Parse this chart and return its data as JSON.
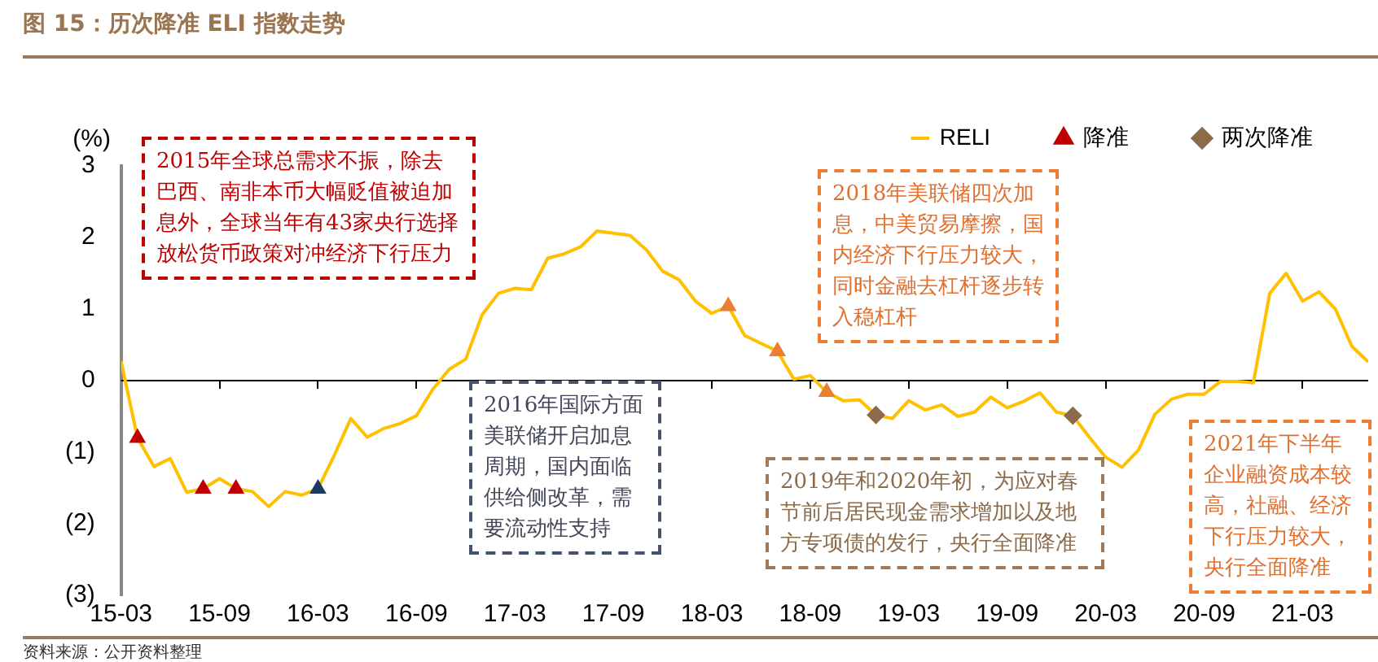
{
  "chart_data": {
    "type": "line",
    "title": "图 15：历次降准 ELI 指数走势",
    "ylabel": "(%)",
    "annotations": [
      "2015年全球总需求不振，除去巴西、南非本币大幅贬值被迫加息外，全球当年有43家央行选择放松货币政策对冲经济下行压力",
      "2016年国际方面美联储开启加息周期，国内面临供给侧改革，需要流动性支持",
      "2018年美联储四次加息，中美贸易摩擦，国内经济下行压力较大，同时金融去杠杆逐步转入稳杠杆",
      "2019年和2020年初，为应对春节前后居民现金需求增加以及地方专项债的发行，央行全面降准",
      "2021年下半年企业融资成本较高，社融、经济下行压力较大，央行全面降准",
      "资料来源：公开资料整理"
    ],
    "x": [
      "2015-03",
      "2015-04",
      "2015-05",
      "2015-06",
      "2015-07",
      "2015-08",
      "2015-09",
      "2015-10",
      "2015-11",
      "2015-12",
      "2016-01",
      "2016-02",
      "2016-03",
      "2016-04",
      "2016-05",
      "2016-06",
      "2016-07",
      "2016-08",
      "2016-09",
      "2016-10",
      "2016-11",
      "2016-12",
      "2017-01",
      "2017-02",
      "2017-03",
      "2017-04",
      "2017-05",
      "2017-06",
      "2017-07",
      "2017-08",
      "2017-09",
      "2017-10",
      "2017-11",
      "2017-12",
      "2018-01",
      "2018-02",
      "2018-03",
      "2018-04",
      "2018-05",
      "2018-06",
      "2018-07",
      "2018-08",
      "2018-09",
      "2018-10",
      "2018-11",
      "2018-12",
      "2019-01",
      "2019-02",
      "2019-03",
      "2019-04",
      "2019-05",
      "2019-06",
      "2019-07",
      "2019-08",
      "2019-09",
      "2019-10",
      "2019-11",
      "2019-12",
      "2020-01",
      "2020-02",
      "2020-03",
      "2020-04",
      "2020-05",
      "2020-06",
      "2020-07",
      "2020-08",
      "2020-09",
      "2020-10",
      "2020-11",
      "2020-12",
      "2021-01",
      "2021-02",
      "2021-03",
      "2021-04",
      "2021-05",
      "2021-06",
      "2021-07"
    ],
    "series": [
      {
        "name": "RELI",
        "type": "line",
        "color": "#ffc000",
        "marker": "none",
        "values": [
          0.27,
          -0.8,
          -1.2,
          -1.09,
          -1.56,
          -1.51,
          -1.37,
          -1.51,
          -1.55,
          -1.76,
          -1.55,
          -1.6,
          -1.51,
          -1.04,
          -0.53,
          -0.79,
          -0.67,
          -0.6,
          -0.49,
          -0.12,
          0.16,
          0.3,
          0.92,
          1.22,
          1.29,
          1.27,
          1.71,
          1.77,
          1.87,
          2.09,
          2.06,
          2.03,
          1.83,
          1.53,
          1.41,
          1.11,
          0.94,
          1.04,
          0.63,
          0.52,
          0.41,
          0.02,
          0.07,
          -0.16,
          -0.28,
          -0.27,
          -0.48,
          -0.53,
          -0.28,
          -0.41,
          -0.34,
          -0.5,
          -0.44,
          -0.23,
          -0.38,
          -0.29,
          -0.17,
          -0.44,
          -0.49,
          -0.79,
          -1.07,
          -1.21,
          -0.97,
          -0.47,
          -0.26,
          -0.19,
          -0.19,
          -0.01,
          -0.01,
          -0.03,
          1.22,
          1.5,
          1.11,
          1.24,
          1.0,
          0.48,
          0.26
        ]
      },
      {
        "name": "降准",
        "type": "scatter",
        "marker": "triangle",
        "color": "#c00000",
        "x": [
          "2015-04",
          "2015-08",
          "2015-10",
          "2016-03",
          "2018-04",
          "2018-07",
          "2018-10"
        ],
        "values": [
          -0.8,
          -1.51,
          -1.51,
          -1.51,
          1.04,
          0.41,
          -0.16
        ],
        "colors": [
          "#c00000",
          "#c00000",
          "#c00000",
          "#1f3864",
          "#ed7d31",
          "#ed7d31",
          "#ed7d31"
        ]
      },
      {
        "name": "两次降准",
        "type": "scatter",
        "marker": "diamond",
        "color": "#8b6b4a",
        "x": [
          "2019-01",
          "2020-01"
        ],
        "values": [
          -0.48,
          -0.49
        ]
      }
    ],
    "xlim": [
      "2015-03",
      "2021-07"
    ],
    "xticks": [
      {
        "value": "2015-03",
        "label": "15-03"
      },
      {
        "value": "2015-09",
        "label": "15-09"
      },
      {
        "value": "2016-03",
        "label": "16-03"
      },
      {
        "value": "2016-09",
        "label": "16-09"
      },
      {
        "value": "2017-03",
        "label": "17-03"
      },
      {
        "value": "2017-09",
        "label": "17-09"
      },
      {
        "value": "2018-03",
        "label": "18-03"
      },
      {
        "value": "2018-09",
        "label": "18-09"
      },
      {
        "value": "2019-03",
        "label": "19-03"
      },
      {
        "value": "2019-09",
        "label": "19-09"
      },
      {
        "value": "2020-03",
        "label": "20-03"
      },
      {
        "value": "2020-09",
        "label": "20-09"
      },
      {
        "value": "2021-03",
        "label": "21-03"
      }
    ],
    "ylim": [
      -3,
      3
    ],
    "yticks": [
      {
        "value": -3,
        "label": "(3)"
      },
      {
        "value": -2,
        "label": "(2)"
      },
      {
        "value": -1,
        "label": "(1)"
      },
      0,
      1,
      2,
      3
    ],
    "ref_lines": [
      {
        "axis": "y",
        "value": 0,
        "color": "#000000"
      }
    ],
    "legend": "top",
    "grid": false
  }
}
